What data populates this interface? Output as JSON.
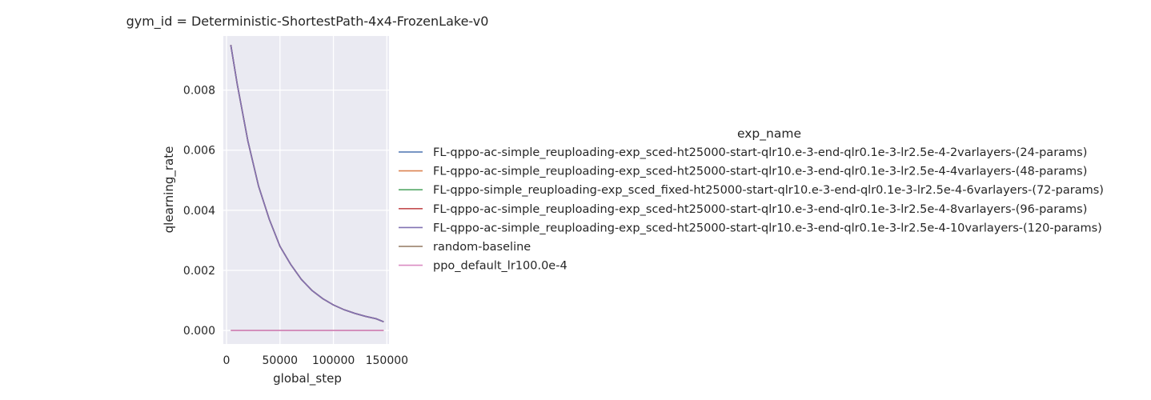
{
  "chart_data": {
    "type": "line",
    "title": "gym_id = Deterministic-ShortestPath-4x4-FrozenLake-v0",
    "xlabel": "global_step",
    "ylabel": "qlearning_rate",
    "xlim": [
      -3000,
      152000
    ],
    "ylim": [
      -0.00045,
      0.0098
    ],
    "xticks": [
      0,
      50000,
      100000,
      150000
    ],
    "xtick_labels": [
      "0",
      "50000",
      "100000",
      "150000"
    ],
    "yticks": [
      0.0,
      0.002,
      0.004,
      0.006,
      0.008
    ],
    "ytick_labels": [
      "0.000",
      "0.002",
      "0.004",
      "0.006",
      "0.008"
    ],
    "grid": true,
    "legend_title": "exp_name",
    "legend_position": "right",
    "x": [
      4000,
      10000,
      20000,
      30000,
      40000,
      50000,
      60000,
      70000,
      80000,
      90000,
      100000,
      110000,
      120000,
      130000,
      140000,
      147000
    ],
    "series": [
      {
        "name": "FL-qppo-ac-simple_reuploading-exp_sced-ht25000-start-qlr10.e-3-end-qlr0.1e-3-lr2.5e-4-2varlayers-(24-params)",
        "color": "#4c72b0",
        "values": [
          0.0095,
          0.0082,
          0.0063,
          0.0048,
          0.0037,
          0.0028,
          0.0022,
          0.0017,
          0.00133,
          0.00106,
          0.00085,
          0.00069,
          0.00057,
          0.00047,
          0.00039,
          0.00029
        ]
      },
      {
        "name": "FL-qppo-ac-simple_reuploading-exp_sced-ht25000-start-qlr10.e-3-end-qlr0.1e-3-lr2.5e-4-4varlayers-(48-params)",
        "color": "#dd8452",
        "values": [
          0.0095,
          0.0082,
          0.0063,
          0.0048,
          0.0037,
          0.0028,
          0.0022,
          0.0017,
          0.00133,
          0.00106,
          0.00085,
          0.00069,
          0.00057,
          0.00047,
          0.00039,
          0.00029
        ]
      },
      {
        "name": "FL-qppo-simple_reuploading-exp_sced_fixed-ht25000-start-qlr10.e-3-end-qlr0.1e-3-lr2.5e-4-6varlayers-(72-params)",
        "color": "#55a868",
        "values": [
          0.0095,
          0.0082,
          0.0063,
          0.0048,
          0.0037,
          0.0028,
          0.0022,
          0.0017,
          0.00133,
          0.00106,
          0.00085,
          0.00069,
          0.00057,
          0.00047,
          0.00039,
          0.00029
        ]
      },
      {
        "name": "FL-qppo-ac-simple_reuploading-exp_sced-ht25000-start-qlr10.e-3-end-qlr0.1e-3-lr2.5e-4-8varlayers-(96-params)",
        "color": "#c44e52",
        "values": [
          0.0095,
          0.0082,
          0.0063,
          0.0048,
          0.0037,
          0.0028,
          0.0022,
          0.0017,
          0.00133,
          0.00106,
          0.00085,
          0.00069,
          0.00057,
          0.00047,
          0.00039,
          0.00029
        ]
      },
      {
        "name": "FL-qppo-ac-simple_reuploading-exp_sced-ht25000-start-qlr10.e-3-end-qlr0.1e-3-lr2.5e-4-10varlayers-(120-params)",
        "color": "#8172b3",
        "values": [
          0.0095,
          0.0082,
          0.0063,
          0.0048,
          0.0037,
          0.0028,
          0.0022,
          0.0017,
          0.00133,
          0.00106,
          0.00085,
          0.00069,
          0.00057,
          0.00047,
          0.00039,
          0.00029
        ]
      },
      {
        "name": "random-baseline",
        "color": "#937860",
        "values": [
          0,
          0,
          0,
          0,
          0,
          0,
          0,
          0,
          0,
          0,
          0,
          0,
          0,
          0,
          0,
          0
        ]
      },
      {
        "name": "ppo_default_lr100.0e-4",
        "color": "#da8bc3",
        "values": [
          0,
          0,
          0,
          0,
          0,
          0,
          0,
          0,
          0,
          0,
          0,
          0,
          0,
          0,
          0,
          0
        ]
      }
    ]
  }
}
